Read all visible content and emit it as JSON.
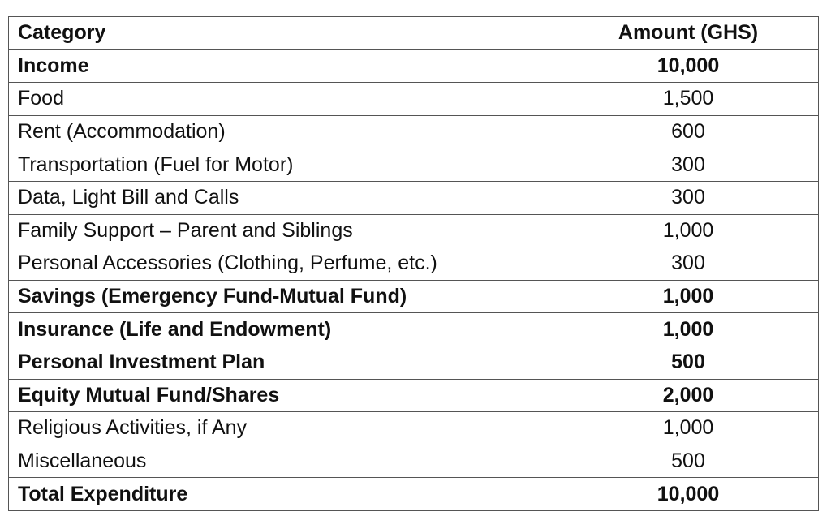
{
  "table": {
    "header": [
      "Category",
      "Amount (GHS)"
    ],
    "rows": [
      [
        "Income",
        "10,000"
      ],
      [
        "Food",
        "1,500"
      ],
      [
        "Rent (Accommodation)",
        "600"
      ],
      [
        "Transportation (Fuel for Motor)",
        "300"
      ],
      [
        "Data, Light Bill and Calls",
        "300"
      ],
      [
        "Family Support – Parent and Siblings",
        "1,000"
      ],
      [
        "Personal Accessories (Clothing, Perfume, etc.)",
        "300"
      ],
      [
        "Savings (Emergency Fund-Mutual Fund)",
        "1,000"
      ],
      [
        "Insurance (Life and Endowment)",
        "1,000"
      ],
      [
        "Personal Investment Plan",
        "500"
      ],
      [
        "Equity Mutual Fund/Shares",
        "2,000"
      ],
      [
        "Religious Activities, if Any",
        "1,000"
      ],
      [
        "Miscellaneous",
        "500"
      ],
      [
        "Total Expenditure",
        "10,000"
      ]
    ]
  }
}
